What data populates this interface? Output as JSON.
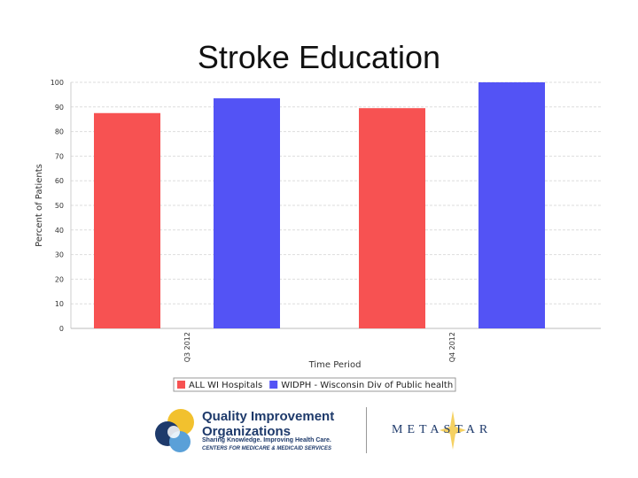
{
  "slide": {
    "title": "Stroke Education"
  },
  "chart_data": {
    "type": "bar",
    "title": "",
    "xlabel": "Time Period",
    "ylabel": "Percent of Patients",
    "ylim": [
      0,
      100
    ],
    "yticks": [
      0,
      10,
      20,
      30,
      40,
      50,
      60,
      70,
      80,
      90,
      100
    ],
    "categories": [
      "Q3 2012",
      "Q4 2012"
    ],
    "series": [
      {
        "name": "ALL WI Hospitals",
        "color": "#f75252",
        "values": [
          87.5,
          89.5
        ]
      },
      {
        "name": "WIDPH - Wisconsin Div of Public health",
        "color": "#5353f5",
        "values": [
          93.5,
          100
        ]
      }
    ],
    "grid": true,
    "legend_position": "bottom"
  },
  "logos": {
    "qio_name": "Quality Improvement Organizations",
    "qio_tagline": "Sharing Knowledge. Improving Health Care.",
    "qio_cms": "CENTERS FOR MEDICARE & MEDICAID SERVICES",
    "metastar_name": "METASTAR"
  }
}
